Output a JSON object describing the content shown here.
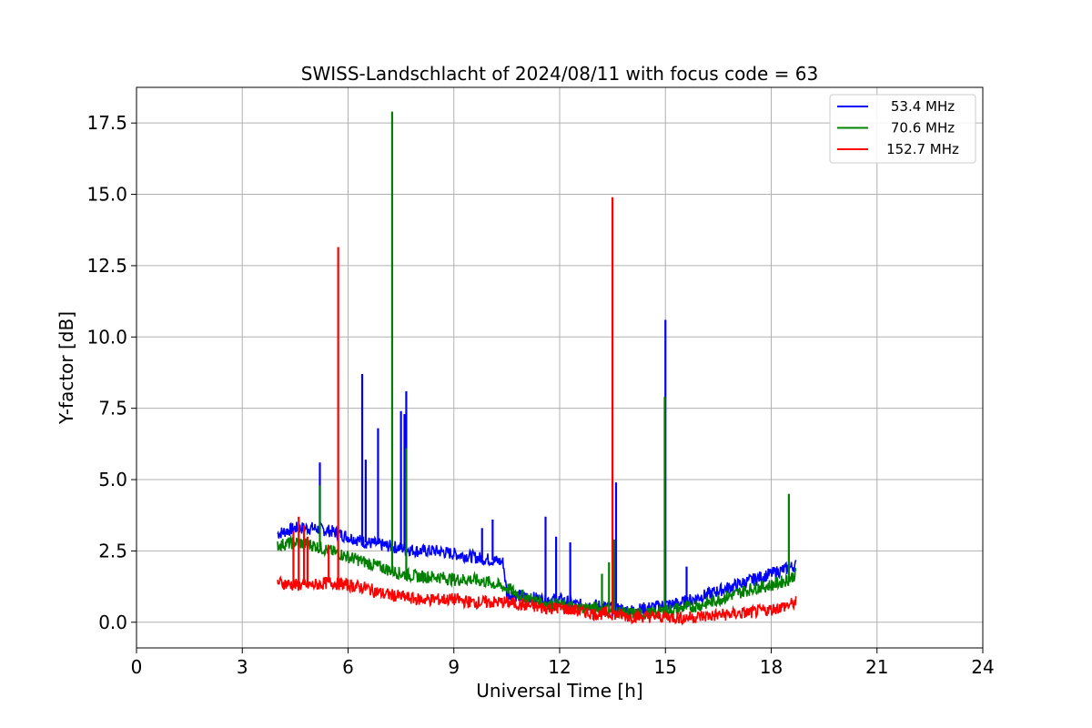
{
  "chart_data": {
    "type": "line",
    "title": "SWISS-Landschlacht of 2024/08/11 with focus code = 63",
    "xlabel": "Universal Time [h]",
    "ylabel": "Y-factor [dB]",
    "xlim": [
      0,
      24
    ],
    "ylim": [
      -0.9,
      18.75
    ],
    "xticks": [
      0,
      3,
      6,
      9,
      12,
      15,
      18,
      21,
      24
    ],
    "xtick_labels": [
      "0",
      "3",
      "6",
      "9",
      "12",
      "15",
      "18",
      "21",
      "24"
    ],
    "yticks": [
      0,
      2.5,
      5,
      7.5,
      10,
      12.5,
      15,
      17.5
    ],
    "ytick_labels": [
      "0.0",
      "2.5",
      "5.0",
      "7.5",
      "10.0",
      "12.5",
      "15.0",
      "17.5"
    ],
    "grid": true,
    "legend_position": "top-right",
    "series": [
      {
        "name": "53.4 MHz",
        "color": "#0000ff",
        "x": [
          4.0,
          4.5,
          5.0,
          5.5,
          6.0,
          6.5,
          7.0,
          7.5,
          8.0,
          8.5,
          9.0,
          9.5,
          10.0,
          10.4,
          10.5,
          11.0,
          11.5,
          12.0,
          12.5,
          13.0,
          13.5,
          14.0,
          14.5,
          15.0,
          15.5,
          16.0,
          16.5,
          17.0,
          17.5,
          18.0,
          18.5,
          18.7
        ],
        "y": [
          3.1,
          3.3,
          3.3,
          3.2,
          3.0,
          2.8,
          2.7,
          2.6,
          2.5,
          2.5,
          2.4,
          2.3,
          2.2,
          2.1,
          1.0,
          0.9,
          0.8,
          0.8,
          0.6,
          0.6,
          0.5,
          0.4,
          0.5,
          0.6,
          0.7,
          0.9,
          1.1,
          1.3,
          1.5,
          1.7,
          1.9,
          2.0
        ],
        "spikes": [
          {
            "x": 5.2,
            "y": 5.6
          },
          {
            "x": 6.4,
            "y": 8.7
          },
          {
            "x": 6.5,
            "y": 5.7
          },
          {
            "x": 6.85,
            "y": 6.8
          },
          {
            "x": 7.5,
            "y": 7.4
          },
          {
            "x": 7.6,
            "y": 7.3
          },
          {
            "x": 7.65,
            "y": 8.1
          },
          {
            "x": 9.8,
            "y": 3.3
          },
          {
            "x": 10.1,
            "y": 3.6
          },
          {
            "x": 11.6,
            "y": 3.7
          },
          {
            "x": 11.9,
            "y": 3.0
          },
          {
            "x": 12.3,
            "y": 2.8
          },
          {
            "x": 13.6,
            "y": 4.9
          },
          {
            "x": 15.0,
            "y": 10.6
          },
          {
            "x": 15.6,
            "y": 1.95
          }
        ]
      },
      {
        "name": "70.6 MHz",
        "color": "#008000",
        "x": [
          4.0,
          4.5,
          5.0,
          5.5,
          6.0,
          6.5,
          7.0,
          7.5,
          8.0,
          8.5,
          9.0,
          9.5,
          10.0,
          10.5,
          11.0,
          11.5,
          12.0,
          12.5,
          13.0,
          13.5,
          14.0,
          14.5,
          15.0,
          15.5,
          16.0,
          16.5,
          17.0,
          17.5,
          18.0,
          18.5,
          18.7
        ],
        "y": [
          2.7,
          2.8,
          2.7,
          2.5,
          2.3,
          2.1,
          1.9,
          1.7,
          1.6,
          1.6,
          1.5,
          1.5,
          1.4,
          1.2,
          0.9,
          0.7,
          0.6,
          0.5,
          0.5,
          0.4,
          0.3,
          0.3,
          0.4,
          0.5,
          0.6,
          0.8,
          1.0,
          1.2,
          1.3,
          1.5,
          1.7
        ],
        "spikes": [
          {
            "x": 5.2,
            "y": 4.8
          },
          {
            "x": 7.25,
            "y": 17.9
          },
          {
            "x": 7.65,
            "y": 6.1
          },
          {
            "x": 13.2,
            "y": 1.7
          },
          {
            "x": 13.4,
            "y": 2.1
          },
          {
            "x": 13.55,
            "y": 2.9
          },
          {
            "x": 14.98,
            "y": 7.9
          },
          {
            "x": 18.5,
            "y": 4.5
          }
        ]
      },
      {
        "name": "152.7 MHz",
        "color": "#ff0000",
        "x": [
          4.0,
          4.5,
          5.0,
          5.5,
          6.0,
          6.5,
          7.0,
          7.5,
          8.0,
          8.5,
          9.0,
          9.5,
          10.0,
          10.5,
          11.0,
          11.5,
          12.0,
          12.5,
          13.0,
          13.5,
          14.0,
          14.5,
          15.0,
          15.5,
          16.0,
          16.5,
          17.0,
          17.5,
          18.0,
          18.5,
          18.7
        ],
        "y": [
          1.4,
          1.3,
          1.3,
          1.4,
          1.3,
          1.2,
          1.0,
          0.9,
          0.8,
          0.8,
          0.8,
          0.7,
          0.7,
          0.7,
          0.6,
          0.5,
          0.5,
          0.4,
          0.3,
          0.3,
          0.2,
          0.2,
          0.2,
          0.15,
          0.2,
          0.25,
          0.3,
          0.35,
          0.45,
          0.6,
          0.7
        ],
        "spikes": [
          {
            "x": 4.45,
            "y": 3.2
          },
          {
            "x": 4.6,
            "y": 3.7
          },
          {
            "x": 4.75,
            "y": 3.4
          },
          {
            "x": 4.85,
            "y": 3.0
          },
          {
            "x": 5.45,
            "y": 2.7
          },
          {
            "x": 5.72,
            "y": 13.15
          },
          {
            "x": 13.5,
            "y": 14.9
          }
        ]
      }
    ]
  }
}
